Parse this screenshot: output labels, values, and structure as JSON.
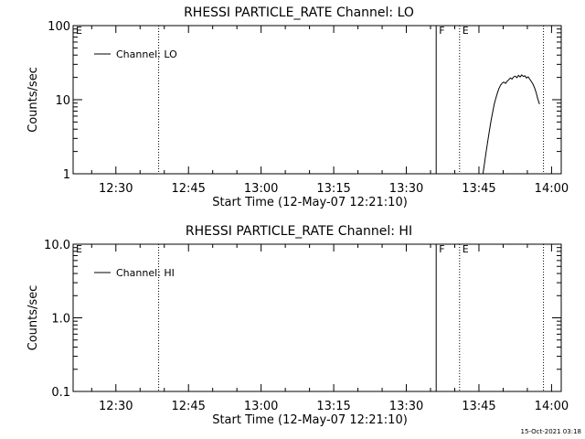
{
  "footer": {
    "timestamp": "15-Oct-2021 03:18"
  },
  "colors": {
    "background": "#ffffff",
    "foreground": "#000000"
  },
  "chart_data": [
    {
      "type": "line",
      "title": "RHESSI PARTICLE_RATE Channel: LO",
      "xlabel": "Start Time (12-May-07 12:21:10)",
      "ylabel": "Counts/sec",
      "yscale": "log",
      "xlim": [
        "12:21:10",
        "14:02:00"
      ],
      "ylim": [
        1,
        100
      ],
      "x_ticks": [
        "12:30",
        "12:45",
        "13:00",
        "13:15",
        "13:30",
        "13:45",
        "14:00"
      ],
      "y_ticks": [
        "1",
        "10",
        "100"
      ],
      "legend": {
        "position": "top-left",
        "entries": [
          "Channel: LO"
        ]
      },
      "markers": [
        {
          "time": "12:21:10",
          "label": "E",
          "style": "none"
        },
        {
          "time": "12:38:50",
          "label": "",
          "style": "dotted"
        },
        {
          "time": "13:36:10",
          "label": "F",
          "style": "solid"
        },
        {
          "time": "13:41:00",
          "label": "E",
          "style": "dotted"
        },
        {
          "time": "13:58:20",
          "label": "",
          "style": "dotted"
        }
      ],
      "series": [
        {
          "name": "Channel: LO",
          "points": [
            [
              "13:45:50",
              1.0
            ],
            [
              "13:46:10",
              1.4
            ],
            [
              "13:46:30",
              2.0
            ],
            [
              "13:46:50",
              2.8
            ],
            [
              "13:47:10",
              3.8
            ],
            [
              "13:47:30",
              5.2
            ],
            [
              "13:47:50",
              6.8
            ],
            [
              "13:48:10",
              8.7
            ],
            [
              "13:48:30",
              10.5
            ],
            [
              "13:48:50",
              12.5
            ],
            [
              "13:49:10",
              14.3
            ],
            [
              "13:49:30",
              15.8
            ],
            [
              "13:49:50",
              16.8
            ],
            [
              "13:50:10",
              17.3
            ],
            [
              "13:50:30",
              16.6
            ],
            [
              "13:50:50",
              17.8
            ],
            [
              "13:51:10",
              18.6
            ],
            [
              "13:51:30",
              19.6
            ],
            [
              "13:51:50",
              19.0
            ],
            [
              "13:52:10",
              20.3
            ],
            [
              "13:52:30",
              20.8
            ],
            [
              "13:52:50",
              19.8
            ],
            [
              "13:53:10",
              21.3
            ],
            [
              "13:53:30",
              20.3
            ],
            [
              "13:53:50",
              21.6
            ],
            [
              "13:54:10",
              20.6
            ],
            [
              "13:54:30",
              21.0
            ],
            [
              "13:54:50",
              19.6
            ],
            [
              "13:55:10",
              20.3
            ],
            [
              "13:55:30",
              18.9
            ],
            [
              "13:55:50",
              17.6
            ],
            [
              "13:56:10",
              16.2
            ],
            [
              "13:56:30",
              14.4
            ],
            [
              "13:56:50",
              12.4
            ],
            [
              "13:57:10",
              10.2
            ],
            [
              "13:57:30",
              8.7
            ]
          ]
        }
      ]
    },
    {
      "type": "line",
      "title": "RHESSI PARTICLE_RATE Channel: HI",
      "xlabel": "Start Time (12-May-07 12:21:10)",
      "ylabel": "Counts/sec",
      "yscale": "log",
      "xlim": [
        "12:21:10",
        "14:02:00"
      ],
      "ylim": [
        0.1,
        10
      ],
      "x_ticks": [
        "12:30",
        "12:45",
        "13:00",
        "13:15",
        "13:30",
        "13:45",
        "14:00"
      ],
      "y_ticks": [
        "0.1",
        "1.0",
        "10.0"
      ],
      "legend": {
        "position": "top-left",
        "entries": [
          "Channel: HI"
        ]
      },
      "markers": [
        {
          "time": "12:21:10",
          "label": "E",
          "style": "none"
        },
        {
          "time": "12:38:50",
          "label": "",
          "style": "dotted"
        },
        {
          "time": "13:36:10",
          "label": "F",
          "style": "solid"
        },
        {
          "time": "13:41:00",
          "label": "E",
          "style": "dotted"
        },
        {
          "time": "13:58:20",
          "label": "",
          "style": "dotted"
        }
      ],
      "series": [
        {
          "name": "Channel: HI",
          "points": []
        }
      ]
    }
  ]
}
